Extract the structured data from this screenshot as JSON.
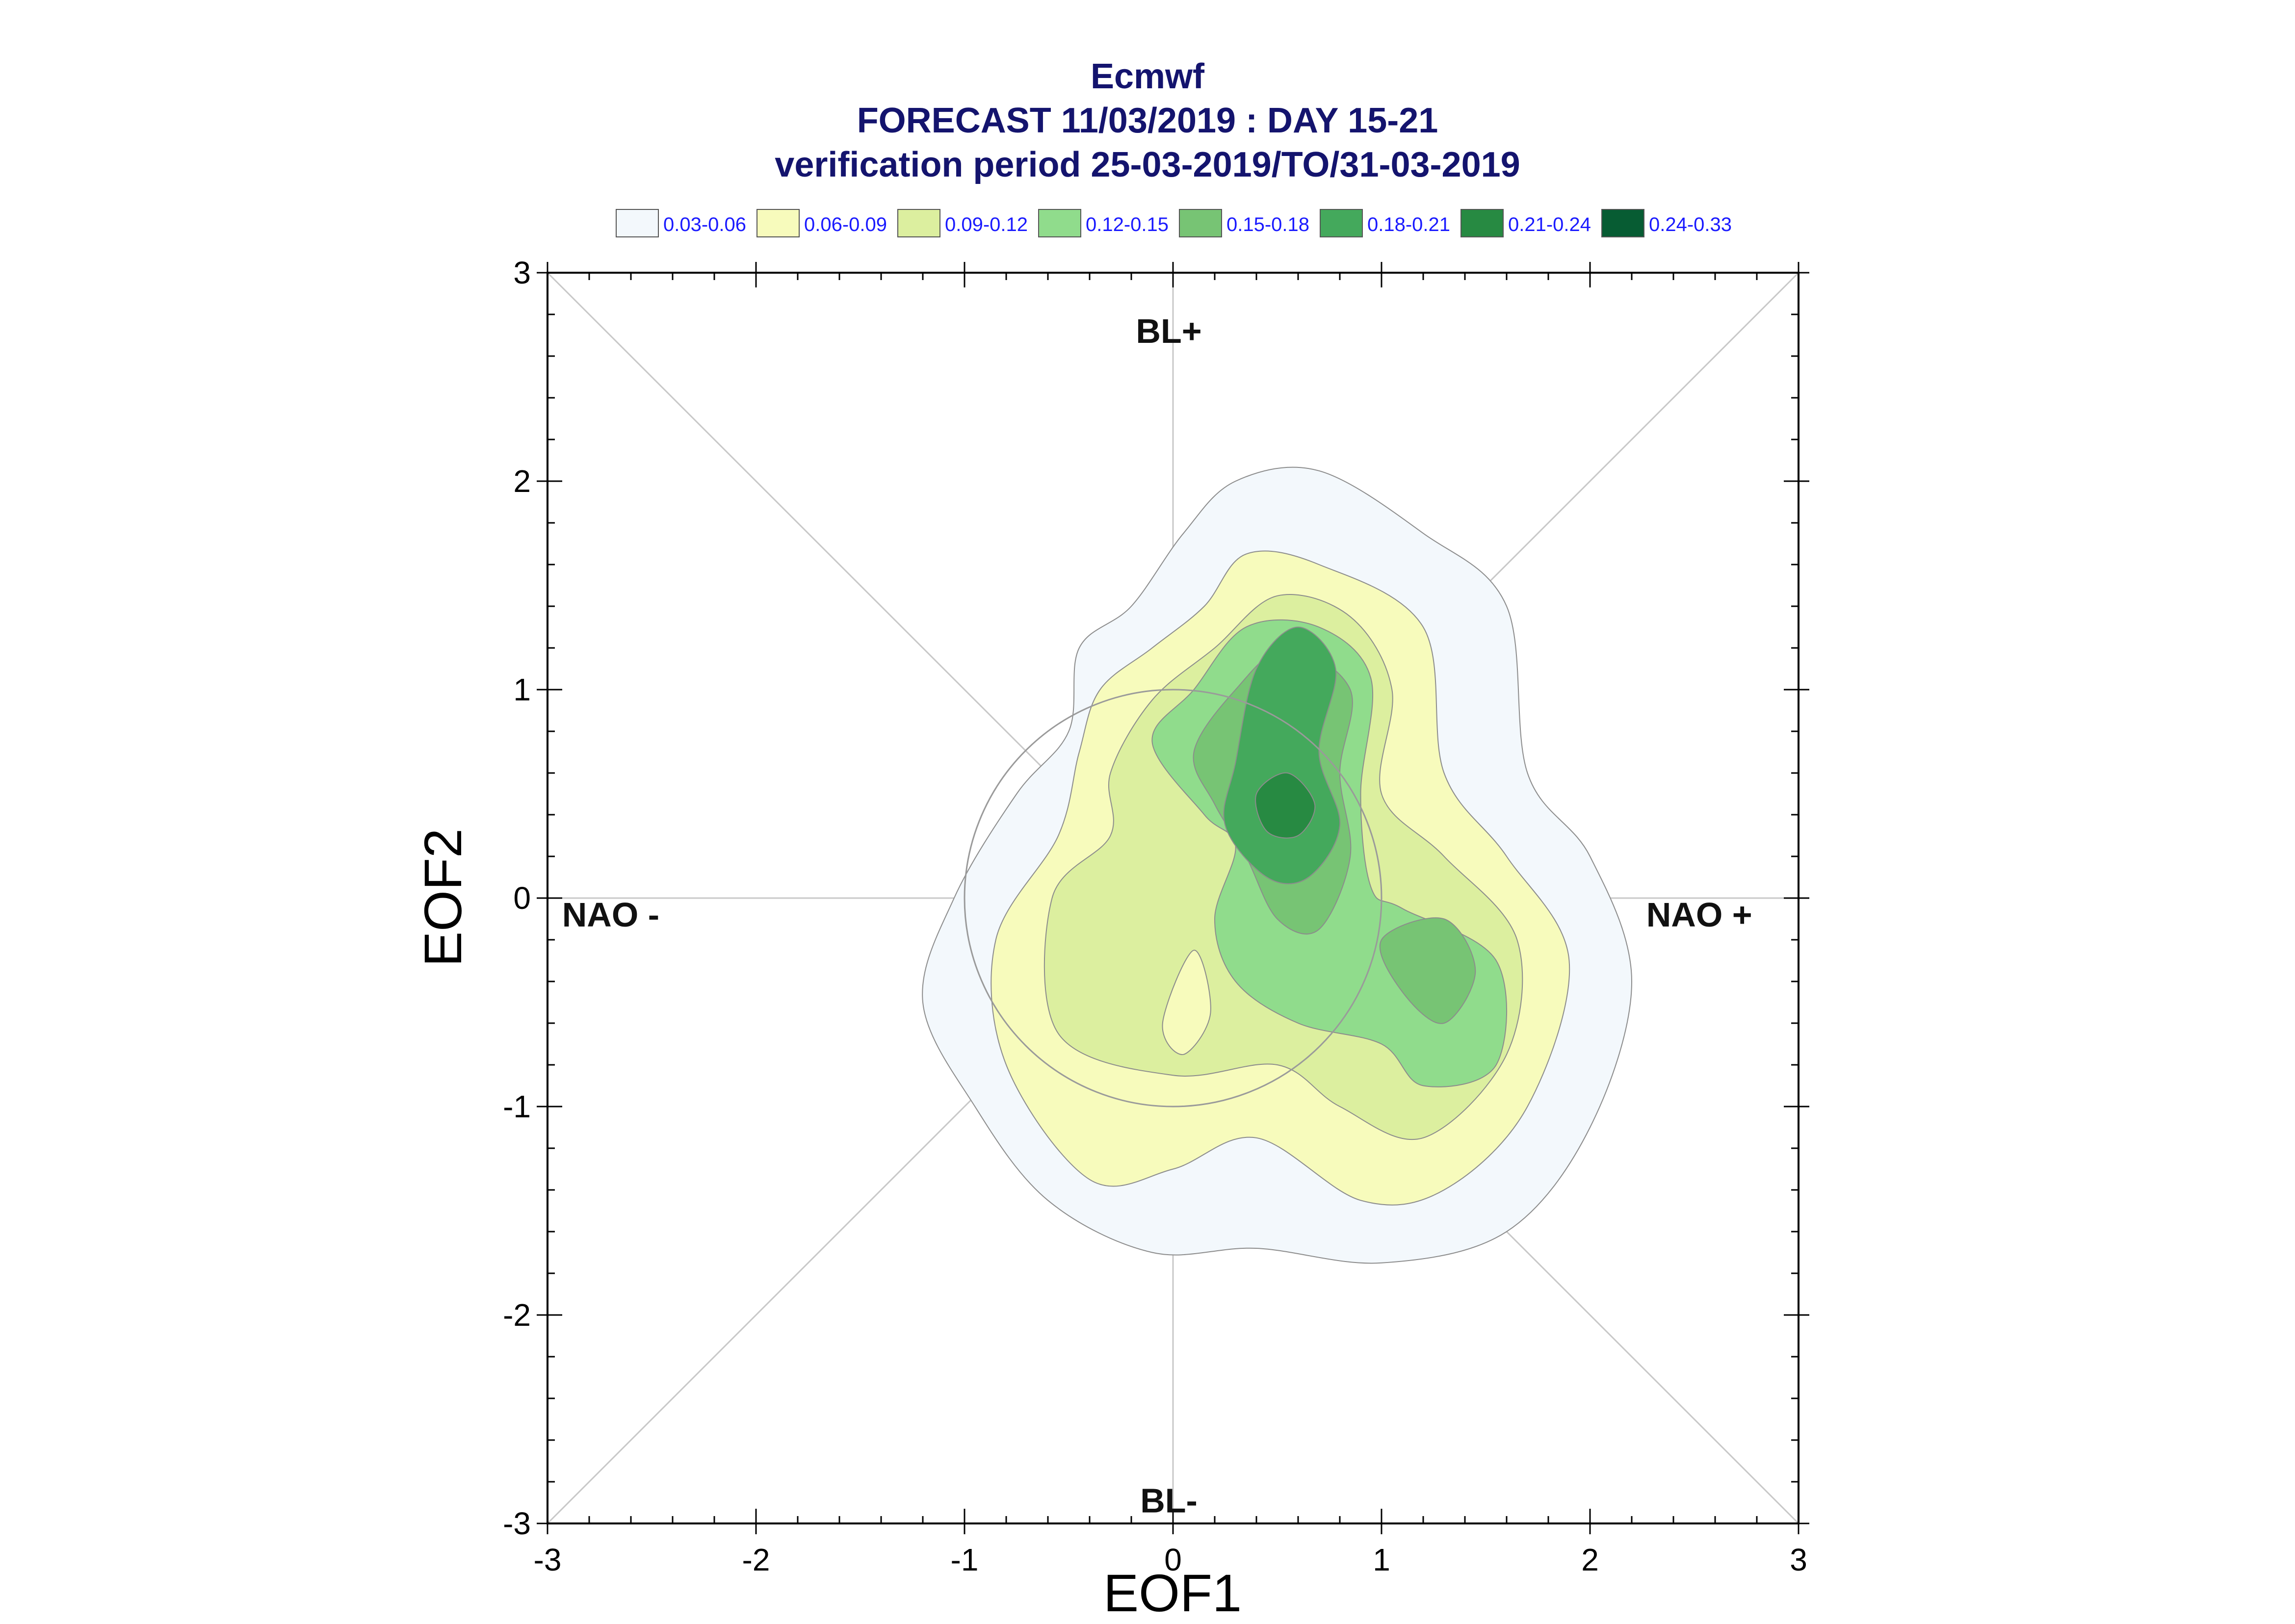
{
  "chart_data": {
    "type": "contour",
    "title": "Ecmwf",
    "subtitle": "FORECAST 11/03/2019 : DAY 15-21",
    "subtitle2": "verification period 25-03-2019/TO/31-03-2019",
    "xlabel": "EOF1",
    "ylabel": "EOF2",
    "xlim": [
      -3,
      3
    ],
    "ylim": [
      -3,
      3
    ],
    "xticks": [
      "-3",
      "-2",
      "-1",
      "0",
      "1",
      "2",
      "3"
    ],
    "yticks": [
      "-3",
      "-2",
      "-1",
      "0",
      "1",
      "2",
      "3"
    ],
    "grid": false,
    "legend": {
      "placement": "top",
      "entries": [
        {
          "label": "0.03-0.06",
          "color": "#f3f8fc"
        },
        {
          "label": "0.06-0.09",
          "color": "#f7fbbc"
        },
        {
          "label": "0.09-0.12",
          "color": "#dcef9f"
        },
        {
          "label": "0.12-0.15",
          "color": "#90dc8c"
        },
        {
          "label": "0.15-0.18",
          "color": "#77c474"
        },
        {
          "label": "0.18-0.21",
          "color": "#44a95c"
        },
        {
          "label": "0.21-0.24",
          "color": "#278a42"
        },
        {
          "label": "0.24-0.33",
          "color": "#075c33"
        }
      ]
    },
    "region_labels": {
      "top": "BL+",
      "bottom": "BL-",
      "left": "NAO -",
      "right": "NAO +"
    },
    "reference_circle": {
      "center": [
        0,
        0
      ],
      "radius": 1
    },
    "contours": [
      {
        "level": "0.03-0.06",
        "color": "#f3f8fc",
        "points": [
          [
            -0.5,
            0.8
          ],
          [
            -0.45,
            1.2
          ],
          [
            -0.2,
            1.4
          ],
          [
            0.05,
            1.75
          ],
          [
            0.3,
            2.0
          ],
          [
            0.7,
            2.05
          ],
          [
            1.2,
            1.75
          ],
          [
            1.6,
            1.4
          ],
          [
            1.7,
            0.6
          ],
          [
            2.0,
            0.2
          ],
          [
            2.2,
            -0.4
          ],
          [
            2.0,
            -1.1
          ],
          [
            1.6,
            -1.6
          ],
          [
            1.0,
            -1.75
          ],
          [
            0.4,
            -1.68
          ],
          [
            -0.1,
            -1.7
          ],
          [
            -0.6,
            -1.45
          ],
          [
            -0.95,
            -1.0
          ],
          [
            -1.2,
            -0.5
          ],
          [
            -1.05,
            0.0
          ],
          [
            -0.75,
            0.5
          ]
        ]
      },
      {
        "level": "0.06-0.09",
        "color": "#f7fbbc",
        "points": [
          [
            -0.35,
            1.0
          ],
          [
            -0.1,
            1.2
          ],
          [
            0.15,
            1.4
          ],
          [
            0.35,
            1.65
          ],
          [
            0.7,
            1.6
          ],
          [
            1.2,
            1.3
          ],
          [
            1.3,
            0.6
          ],
          [
            1.6,
            0.2
          ],
          [
            1.9,
            -0.3
          ],
          [
            1.7,
            -1.0
          ],
          [
            1.3,
            -1.4
          ],
          [
            0.9,
            -1.45
          ],
          [
            0.4,
            -1.15
          ],
          [
            0.0,
            -1.3
          ],
          [
            -0.4,
            -1.35
          ],
          [
            -0.8,
            -0.8
          ],
          [
            -0.85,
            -0.2
          ],
          [
            -0.55,
            0.3
          ],
          [
            -0.45,
            0.7
          ]
        ]
      },
      {
        "level": "0.09-0.12",
        "color": "#dcef9f",
        "points": [
          [
            -0.1,
            0.95
          ],
          [
            0.2,
            1.2
          ],
          [
            0.5,
            1.45
          ],
          [
            0.85,
            1.35
          ],
          [
            1.05,
            1.0
          ],
          [
            1.0,
            0.5
          ],
          [
            1.3,
            0.2
          ],
          [
            1.65,
            -0.2
          ],
          [
            1.6,
            -0.75
          ],
          [
            1.2,
            -1.15
          ],
          [
            0.8,
            -1.0
          ],
          [
            0.5,
            -0.8
          ],
          [
            0.0,
            -0.85
          ],
          [
            -0.55,
            -0.65
          ],
          [
            -0.58,
            0.0
          ],
          [
            -0.3,
            0.3
          ],
          [
            -0.3,
            0.6
          ]
        ]
      },
      {
        "level": "0.12-0.15",
        "color": "#90dc8c",
        "points": [
          [
            -0.1,
            0.75
          ],
          [
            0.1,
            1.0
          ],
          [
            0.35,
            1.3
          ],
          [
            0.7,
            1.3
          ],
          [
            0.95,
            1.05
          ],
          [
            0.9,
            0.5
          ],
          [
            0.95,
            0.05
          ],
          [
            1.1,
            -0.05
          ],
          [
            1.55,
            -0.3
          ],
          [
            1.55,
            -0.8
          ],
          [
            1.2,
            -0.9
          ],
          [
            1.0,
            -0.7
          ],
          [
            0.6,
            -0.6
          ],
          [
            0.3,
            -0.4
          ],
          [
            0.2,
            -0.1
          ],
          [
            0.3,
            0.25
          ],
          [
            0.15,
            0.4
          ]
        ]
      },
      {
        "level": "0.15-0.18",
        "color": "#77c474",
        "points": [
          [
            0.1,
            0.7
          ],
          [
            0.3,
            1.0
          ],
          [
            0.55,
            1.2
          ],
          [
            0.85,
            1.0
          ],
          [
            0.8,
            0.6
          ],
          [
            0.85,
            0.2
          ],
          [
            0.7,
            -0.15
          ],
          [
            0.5,
            -0.1
          ],
          [
            0.35,
            0.2
          ],
          [
            0.2,
            0.45
          ]
        ]
      },
      {
        "level": "0.18-0.21",
        "color": "#44a95c",
        "points": [
          [
            0.3,
            0.65
          ],
          [
            0.4,
            1.1
          ],
          [
            0.6,
            1.3
          ],
          [
            0.78,
            1.1
          ],
          [
            0.7,
            0.7
          ],
          [
            0.8,
            0.35
          ],
          [
            0.65,
            0.1
          ],
          [
            0.45,
            0.1
          ],
          [
            0.25,
            0.35
          ]
        ]
      },
      {
        "level": "0.21-0.24",
        "color": "#278a42",
        "points": [
          [
            0.4,
            0.5
          ],
          [
            0.55,
            0.6
          ],
          [
            0.68,
            0.45
          ],
          [
            0.6,
            0.3
          ],
          [
            0.45,
            0.32
          ]
        ]
      },
      {
        "level": "0.15-0.18",
        "color": "#77c474",
        "points": [
          [
            1.0,
            -0.2
          ],
          [
            1.3,
            -0.1
          ],
          [
            1.45,
            -0.35
          ],
          [
            1.3,
            -0.6
          ],
          [
            1.1,
            -0.45
          ]
        ]
      },
      {
        "level": "0.06-0.09",
        "color": "#f7fbbc",
        "points": [
          [
            -0.05,
            -0.6
          ],
          [
            0.1,
            -0.25
          ],
          [
            0.18,
            -0.55
          ],
          [
            0.05,
            -0.75
          ]
        ]
      }
    ]
  }
}
